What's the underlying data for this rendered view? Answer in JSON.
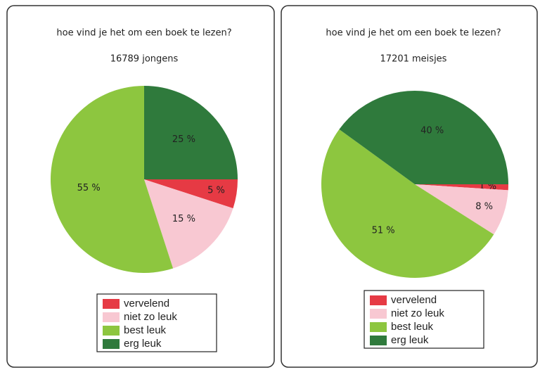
{
  "chart_data": [
    {
      "type": "pie",
      "title": "hoe vind je het om een boek te lezen?",
      "subtitle": "16789 jongens",
      "categories": [
        "vervelend",
        "niet zo leuk",
        "best leuk",
        "erg leuk"
      ],
      "values": [
        5,
        15,
        55,
        25
      ],
      "value_labels": [
        "5 %",
        "15 %",
        "55 %",
        "25 %"
      ],
      "colors": [
        "#e63a44",
        "#f8c8d2",
        "#8dc63f",
        "#2f7a3c"
      ]
    },
    {
      "type": "pie",
      "title": "hoe vind je het om een boek te lezen?",
      "subtitle": "17201 meisjes",
      "categories": [
        "vervelend",
        "niet zo leuk",
        "best leuk",
        "erg leuk"
      ],
      "values": [
        1,
        8,
        51,
        40
      ],
      "value_labels": [
        "1 %",
        "8 %",
        "51 %",
        "40 %"
      ],
      "colors": [
        "#e63a44",
        "#f8c8d2",
        "#8dc63f",
        "#2f7a3c"
      ]
    }
  ]
}
